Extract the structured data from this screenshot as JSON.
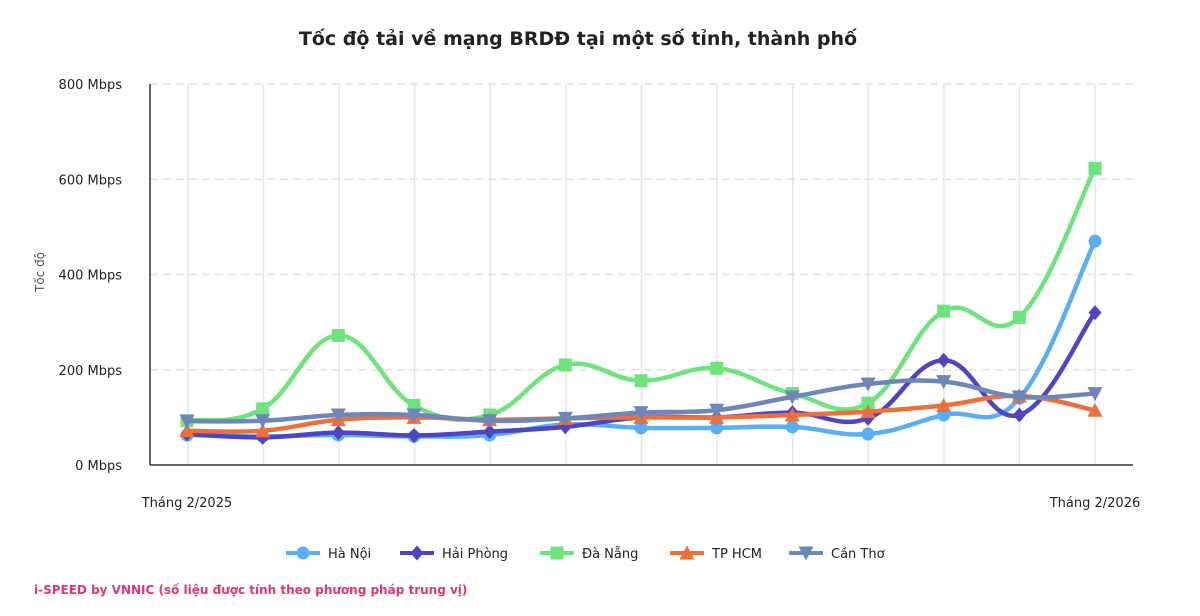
{
  "chart_data": {
    "type": "line",
    "title": "Tốc độ tải về mạng BRDĐ tại một số tỉnh, thành phố",
    "ylabel": "Tốc độ",
    "ylim": [
      0,
      800
    ],
    "yticks": [
      0,
      200,
      400,
      600,
      800
    ],
    "ytick_suffix": " Mbps",
    "ytick_labels": [
      "0 Mbps",
      "200 Mbps",
      "400 Mbps",
      "600 Mbps",
      "800 Mbps"
    ],
    "x_count": 13,
    "x_first_label": "Tháng 2/2025",
    "x_last_label": "Tháng 2/2026",
    "grid": true,
    "legend_position": "bottom",
    "series": [
      {
        "name": "Hà Nội",
        "color": "#5aaef2",
        "marker": "circle",
        "values": [
          63,
          60,
          63,
          60,
          63,
          85,
          78,
          78,
          80,
          65,
          105,
          140,
          470
        ]
      },
      {
        "name": "Hải Phòng",
        "color": "#5045c0",
        "marker": "diamond",
        "values": [
          65,
          58,
          68,
          62,
          70,
          80,
          100,
          100,
          110,
          98,
          220,
          105,
          320
        ]
      },
      {
        "name": "Đà Nẵng",
        "color": "#6ee37e",
        "marker": "square",
        "values": [
          93,
          118,
          272,
          125,
          105,
          210,
          177,
          203,
          150,
          130,
          323,
          310,
          623
        ]
      },
      {
        "name": "TP HCM",
        "color": "#ec6f3c",
        "marker": "triangle-up",
        "values": [
          72,
          72,
          95,
          100,
          95,
          98,
          100,
          100,
          105,
          112,
          125,
          145,
          115
        ]
      },
      {
        "name": "Cần Thơ",
        "color": "#6f86b8",
        "marker": "triangle-down",
        "values": [
          92,
          93,
          105,
          105,
          93,
          98,
          110,
          115,
          143,
          170,
          175,
          143,
          150
        ]
      }
    ]
  },
  "footer": "i-SPEED by VNNIC (số liệu được tính theo phương pháp trung vị)"
}
